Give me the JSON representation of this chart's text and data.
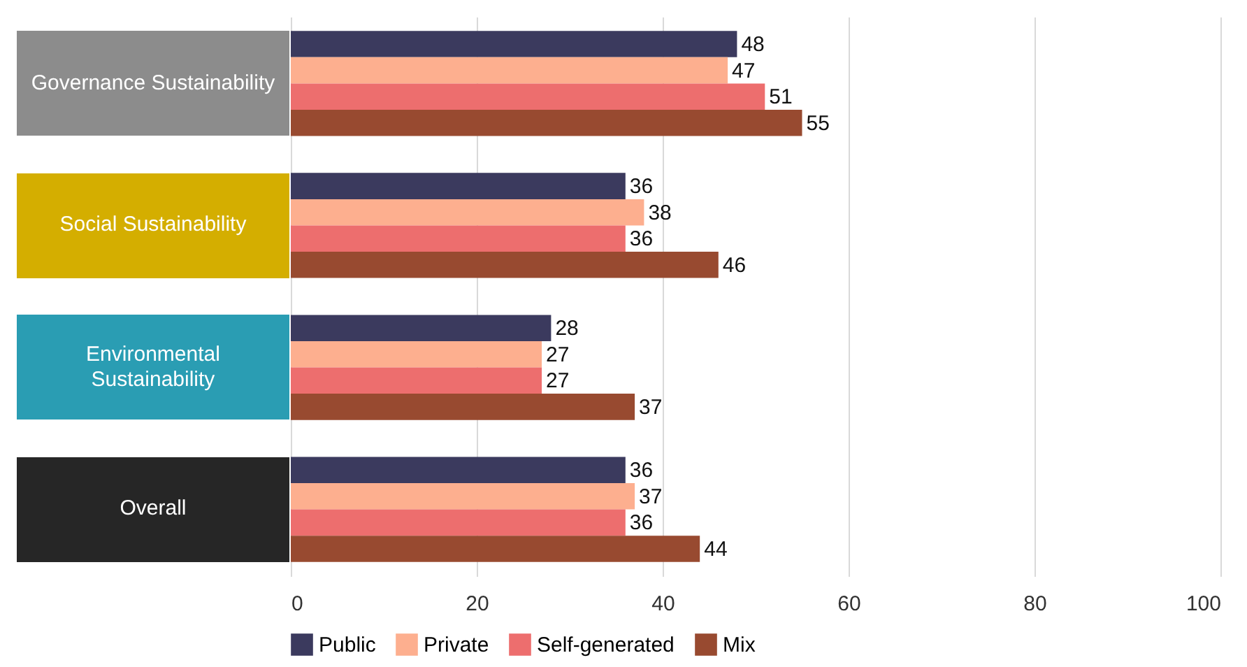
{
  "chart_data": {
    "type": "bar",
    "orientation": "horizontal",
    "categories": [
      "Governance Sustainability",
      "Social Sustainability",
      "Environmental Sustainability",
      "Overall"
    ],
    "series": [
      {
        "name": "Public",
        "color": "#3b3a5e",
        "values": [
          48,
          36,
          28,
          36
        ]
      },
      {
        "name": "Private",
        "color": "#fdaf8f",
        "values": [
          47,
          38,
          27,
          37
        ]
      },
      {
        "name": "Self-generated",
        "color": "#ed6e6e",
        "values": [
          51,
          36,
          27,
          36
        ]
      },
      {
        "name": "Mix",
        "color": "#984a30",
        "values": [
          55,
          46,
          37,
          44
        ]
      }
    ],
    "xlim": [
      0,
      100
    ],
    "xticks": [
      0,
      20,
      40,
      60,
      80,
      100
    ],
    "grid": "x",
    "legend": "bottom",
    "data_labels": true
  }
}
